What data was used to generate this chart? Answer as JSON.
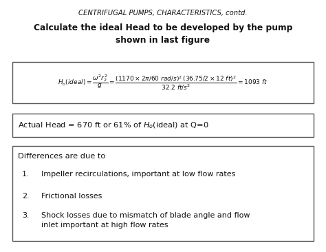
{
  "title_top": "CENTRIFUGAL PUMPS, CHARACTERISTICS, contd.",
  "title_bold": "Calculate the ideal Head to be developed by the pump\nshown in last figure",
  "differences_title": "Differences are due to",
  "items": [
    "Impeller recirculations, important at low flow rates",
    "Frictional losses",
    "Shock losses due to mismatch of blade angle and flow\ninlet important at high flow rates"
  ],
  "bg_color": "#ffffff",
  "text_color": "#111111",
  "box_edge_color": "#555555"
}
